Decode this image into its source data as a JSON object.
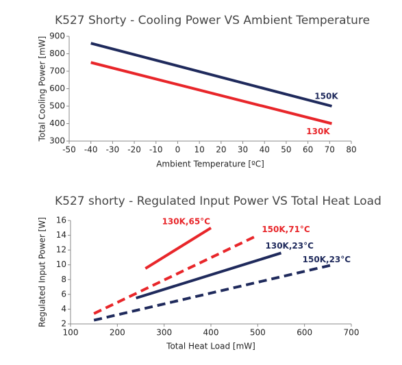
{
  "chart_data": [
    {
      "type": "line",
      "title": "K527 Shorty - Cooling Power VS Ambient Temperature",
      "x_label": "Ambient Temperature [ºC]",
      "y_label": "Total Cooling Power [mW]",
      "xlim": [
        -50,
        80
      ],
      "xticks": [
        -50,
        -40,
        -30,
        -20,
        -10,
        0,
        10,
        20,
        30,
        40,
        50,
        60,
        70,
        80
      ],
      "ylim": [
        300,
        900
      ],
      "yticks": [
        300,
        400,
        500,
        600,
        700,
        800,
        900
      ],
      "series": [
        {
          "name": "150K",
          "color": "#1f2a5c",
          "dash": false,
          "x": [
            -40,
            71
          ],
          "values": [
            860,
            500
          ]
        },
        {
          "name": "130K",
          "color": "#e8262a",
          "dash": false,
          "x": [
            -40,
            71
          ],
          "values": [
            750,
            400
          ]
        }
      ]
    },
    {
      "type": "line",
      "title": "K527 shorty - Regulated Input Power VS Total Heat Load",
      "x_label": "Total Heat Load [mW]",
      "y_label": "Regulated Input Power [W]",
      "xlim": [
        100,
        700
      ],
      "xticks": [
        100,
        200,
        300,
        400,
        500,
        600,
        700
      ],
      "ylim": [
        2,
        16
      ],
      "yticks": [
        2,
        4,
        6,
        8,
        10,
        12,
        14,
        16
      ],
      "series": [
        {
          "name": "130K,65°C",
          "color": "#e8262a",
          "dash": false,
          "x": [
            260,
            400
          ],
          "values": [
            9.5,
            15
          ]
        },
        {
          "name": "150K,71°C",
          "color": "#e8262a",
          "dash": true,
          "x": [
            150,
            500
          ],
          "values": [
            3.4,
            14
          ]
        },
        {
          "name": "130K,23°C",
          "color": "#1f2a5c",
          "dash": false,
          "x": [
            240,
            550
          ],
          "values": [
            5.5,
            11.6
          ]
        },
        {
          "name": "150K,23°C",
          "color": "#1f2a5c",
          "dash": true,
          "x": [
            150,
            660
          ],
          "values": [
            2.5,
            10
          ]
        }
      ]
    }
  ]
}
